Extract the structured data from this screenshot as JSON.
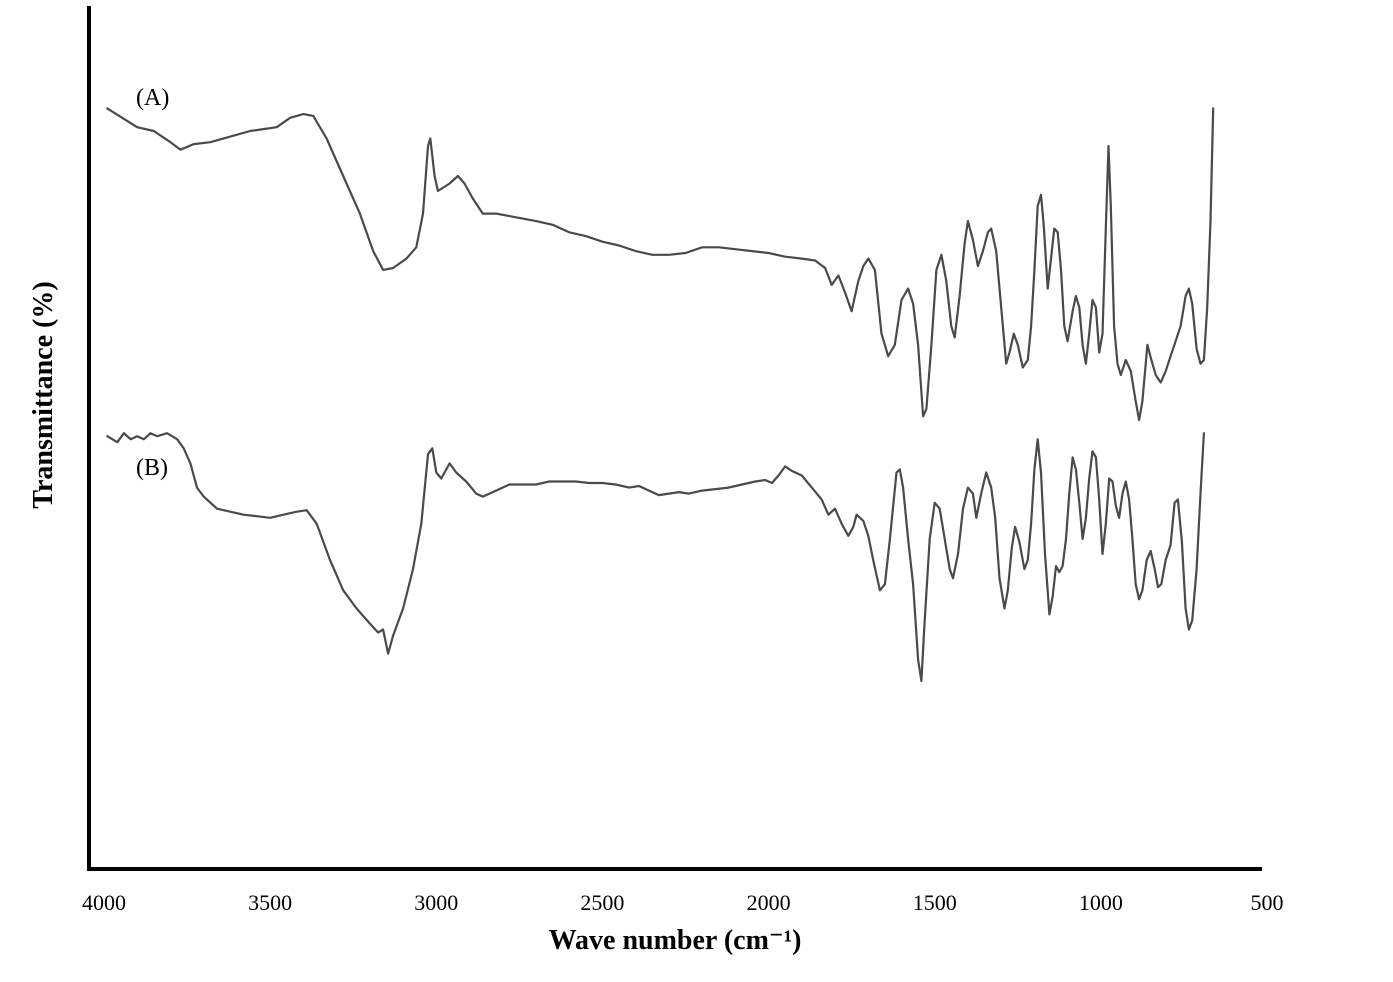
{
  "chart_data": {
    "type": "line",
    "xlabel": "Wave number (cm⁻¹)",
    "ylabel": "Transmittance (%)",
    "xlim": [
      4000,
      500
    ],
    "x_reversed": true,
    "x_ticks": [
      "4000",
      "3500",
      "3000",
      "2500",
      "2000",
      "1500",
      "1000",
      "500"
    ],
    "x_tick_values": [
      4000,
      3500,
      3000,
      2500,
      2000,
      1500,
      1000,
      500
    ],
    "y_tick_labels_shown": false,
    "grid": false,
    "legend": "none",
    "series": [
      {
        "name": "(A)",
        "points": [
          [
            3990,
            0.98
          ],
          [
            3900,
            0.93
          ],
          [
            3850,
            0.92
          ],
          [
            3800,
            0.89
          ],
          [
            3770,
            0.87
          ],
          [
            3730,
            0.885
          ],
          [
            3680,
            0.89
          ],
          [
            3620,
            0.905
          ],
          [
            3560,
            0.92
          ],
          [
            3520,
            0.925
          ],
          [
            3480,
            0.93
          ],
          [
            3440,
            0.955
          ],
          [
            3400,
            0.965
          ],
          [
            3370,
            0.96
          ],
          [
            3330,
            0.9
          ],
          [
            3280,
            0.8
          ],
          [
            3230,
            0.7
          ],
          [
            3190,
            0.6
          ],
          [
            3160,
            0.55
          ],
          [
            3130,
            0.555
          ],
          [
            3090,
            0.58
          ],
          [
            3060,
            0.61
          ],
          [
            3040,
            0.7
          ],
          [
            3025,
            0.88
          ],
          [
            3018,
            0.9
          ],
          [
            3005,
            0.8
          ],
          [
            2995,
            0.76
          ],
          [
            2960,
            0.78
          ],
          [
            2935,
            0.8
          ],
          [
            2915,
            0.78
          ],
          [
            2890,
            0.74
          ],
          [
            2860,
            0.7
          ],
          [
            2820,
            0.7
          ],
          [
            2760,
            0.69
          ],
          [
            2700,
            0.68
          ],
          [
            2650,
            0.67
          ],
          [
            2600,
            0.65
          ],
          [
            2550,
            0.64
          ],
          [
            2500,
            0.625
          ],
          [
            2450,
            0.615
          ],
          [
            2400,
            0.6
          ],
          [
            2350,
            0.59
          ],
          [
            2300,
            0.59
          ],
          [
            2250,
            0.595
          ],
          [
            2200,
            0.61
          ],
          [
            2150,
            0.61
          ],
          [
            2100,
            0.605
          ],
          [
            2050,
            0.6
          ],
          [
            2000,
            0.595
          ],
          [
            1950,
            0.585
          ],
          [
            1900,
            0.58
          ],
          [
            1860,
            0.575
          ],
          [
            1830,
            0.555
          ],
          [
            1810,
            0.51
          ],
          [
            1790,
            0.535
          ],
          [
            1770,
            0.49
          ],
          [
            1750,
            0.44
          ],
          [
            1730,
            0.52
          ],
          [
            1715,
            0.56
          ],
          [
            1700,
            0.58
          ],
          [
            1680,
            0.55
          ],
          [
            1660,
            0.38
          ],
          [
            1640,
            0.32
          ],
          [
            1620,
            0.35
          ],
          [
            1600,
            0.47
          ],
          [
            1580,
            0.5
          ],
          [
            1565,
            0.46
          ],
          [
            1550,
            0.35
          ],
          [
            1535,
            0.16
          ],
          [
            1525,
            0.18
          ],
          [
            1510,
            0.35
          ],
          [
            1495,
            0.55
          ],
          [
            1480,
            0.59
          ],
          [
            1465,
            0.52
          ],
          [
            1450,
            0.4
          ],
          [
            1440,
            0.37
          ],
          [
            1425,
            0.48
          ],
          [
            1410,
            0.62
          ],
          [
            1400,
            0.68
          ],
          [
            1385,
            0.63
          ],
          [
            1370,
            0.56
          ],
          [
            1355,
            0.6
          ],
          [
            1340,
            0.65
          ],
          [
            1330,
            0.66
          ],
          [
            1315,
            0.6
          ],
          [
            1300,
            0.45
          ],
          [
            1285,
            0.3
          ],
          [
            1275,
            0.33
          ],
          [
            1262,
            0.38
          ],
          [
            1250,
            0.35
          ],
          [
            1235,
            0.29
          ],
          [
            1220,
            0.31
          ],
          [
            1210,
            0.4
          ],
          [
            1200,
            0.55
          ],
          [
            1190,
            0.72
          ],
          [
            1180,
            0.75
          ],
          [
            1172,
            0.67
          ],
          [
            1160,
            0.5
          ],
          [
            1150,
            0.58
          ],
          [
            1140,
            0.66
          ],
          [
            1130,
            0.65
          ],
          [
            1120,
            0.55
          ],
          [
            1110,
            0.4
          ],
          [
            1100,
            0.36
          ],
          [
            1085,
            0.44
          ],
          [
            1075,
            0.48
          ],
          [
            1065,
            0.45
          ],
          [
            1055,
            0.35
          ],
          [
            1045,
            0.3
          ],
          [
            1035,
            0.38
          ],
          [
            1025,
            0.47
          ],
          [
            1015,
            0.45
          ],
          [
            1005,
            0.33
          ],
          [
            995,
            0.38
          ],
          [
            985,
            0.66
          ],
          [
            977,
            0.88
          ],
          [
            970,
            0.72
          ],
          [
            960,
            0.4
          ],
          [
            950,
            0.3
          ],
          [
            940,
            0.27
          ],
          [
            925,
            0.31
          ],
          [
            910,
            0.28
          ],
          [
            895,
            0.2
          ],
          [
            885,
            0.15
          ],
          [
            875,
            0.2
          ],
          [
            860,
            0.35
          ],
          [
            848,
            0.31
          ],
          [
            835,
            0.27
          ],
          [
            820,
            0.25
          ],
          [
            805,
            0.28
          ],
          [
            790,
            0.32
          ],
          [
            775,
            0.36
          ],
          [
            760,
            0.4
          ],
          [
            745,
            0.48
          ],
          [
            735,
            0.5
          ],
          [
            725,
            0.46
          ],
          [
            712,
            0.34
          ],
          [
            700,
            0.3
          ],
          [
            690,
            0.31
          ],
          [
            680,
            0.45
          ],
          [
            670,
            0.68
          ],
          [
            662,
            0.98
          ]
        ]
      },
      {
        "name": "(B)",
        "points": [
          [
            3990,
            0.99
          ],
          [
            3960,
            0.97
          ],
          [
            3940,
            1.0
          ],
          [
            3920,
            0.98
          ],
          [
            3900,
            0.99
          ],
          [
            3880,
            0.98
          ],
          [
            3860,
            1.0
          ],
          [
            3840,
            0.99
          ],
          [
            3810,
            1.0
          ],
          [
            3780,
            0.98
          ],
          [
            3760,
            0.95
          ],
          [
            3740,
            0.9
          ],
          [
            3720,
            0.82
          ],
          [
            3700,
            0.79
          ],
          [
            3660,
            0.75
          ],
          [
            3620,
            0.74
          ],
          [
            3580,
            0.73
          ],
          [
            3540,
            0.725
          ],
          [
            3500,
            0.72
          ],
          [
            3460,
            0.73
          ],
          [
            3420,
            0.74
          ],
          [
            3390,
            0.745
          ],
          [
            3360,
            0.7
          ],
          [
            3320,
            0.58
          ],
          [
            3280,
            0.48
          ],
          [
            3240,
            0.42
          ],
          [
            3200,
            0.37
          ],
          [
            3175,
            0.34
          ],
          [
            3160,
            0.35
          ],
          [
            3145,
            0.27
          ],
          [
            3130,
            0.33
          ],
          [
            3100,
            0.42
          ],
          [
            3070,
            0.55
          ],
          [
            3045,
            0.7
          ],
          [
            3025,
            0.93
          ],
          [
            3012,
            0.95
          ],
          [
            3000,
            0.87
          ],
          [
            2985,
            0.85
          ],
          [
            2960,
            0.9
          ],
          [
            2940,
            0.87
          ],
          [
            2910,
            0.84
          ],
          [
            2880,
            0.8
          ],
          [
            2860,
            0.79
          ],
          [
            2820,
            0.81
          ],
          [
            2780,
            0.83
          ],
          [
            2740,
            0.83
          ],
          [
            2700,
            0.83
          ],
          [
            2660,
            0.84
          ],
          [
            2620,
            0.84
          ],
          [
            2580,
            0.84
          ],
          [
            2540,
            0.835
          ],
          [
            2500,
            0.835
          ],
          [
            2460,
            0.83
          ],
          [
            2420,
            0.82
          ],
          [
            2390,
            0.825
          ],
          [
            2360,
            0.81
          ],
          [
            2330,
            0.795
          ],
          [
            2300,
            0.8
          ],
          [
            2270,
            0.805
          ],
          [
            2240,
            0.8
          ],
          [
            2200,
            0.81
          ],
          [
            2160,
            0.815
          ],
          [
            2120,
            0.82
          ],
          [
            2080,
            0.83
          ],
          [
            2040,
            0.84
          ],
          [
            2010,
            0.845
          ],
          [
            1990,
            0.835
          ],
          [
            1970,
            0.86
          ],
          [
            1950,
            0.89
          ],
          [
            1930,
            0.875
          ],
          [
            1900,
            0.86
          ],
          [
            1870,
            0.82
          ],
          [
            1840,
            0.78
          ],
          [
            1820,
            0.73
          ],
          [
            1800,
            0.75
          ],
          [
            1780,
            0.7
          ],
          [
            1760,
            0.66
          ],
          [
            1745,
            0.69
          ],
          [
            1735,
            0.73
          ],
          [
            1715,
            0.71
          ],
          [
            1700,
            0.66
          ],
          [
            1685,
            0.58
          ],
          [
            1665,
            0.48
          ],
          [
            1650,
            0.5
          ],
          [
            1635,
            0.65
          ],
          [
            1615,
            0.87
          ],
          [
            1605,
            0.88
          ],
          [
            1595,
            0.82
          ],
          [
            1580,
            0.65
          ],
          [
            1565,
            0.5
          ],
          [
            1550,
            0.25
          ],
          [
            1540,
            0.18
          ],
          [
            1530,
            0.38
          ],
          [
            1515,
            0.65
          ],
          [
            1500,
            0.77
          ],
          [
            1485,
            0.75
          ],
          [
            1470,
            0.65
          ],
          [
            1455,
            0.55
          ],
          [
            1445,
            0.52
          ],
          [
            1430,
            0.6
          ],
          [
            1415,
            0.75
          ],
          [
            1400,
            0.82
          ],
          [
            1385,
            0.8
          ],
          [
            1375,
            0.72
          ],
          [
            1360,
            0.8
          ],
          [
            1345,
            0.87
          ],
          [
            1330,
            0.82
          ],
          [
            1318,
            0.72
          ],
          [
            1305,
            0.52
          ],
          [
            1290,
            0.42
          ],
          [
            1280,
            0.48
          ],
          [
            1268,
            0.62
          ],
          [
            1258,
            0.69
          ],
          [
            1245,
            0.64
          ],
          [
            1230,
            0.55
          ],
          [
            1220,
            0.58
          ],
          [
            1210,
            0.7
          ],
          [
            1200,
            0.88
          ],
          [
            1190,
            0.98
          ],
          [
            1180,
            0.87
          ],
          [
            1168,
            0.6
          ],
          [
            1155,
            0.4
          ],
          [
            1145,
            0.46
          ],
          [
            1135,
            0.56
          ],
          [
            1125,
            0.54
          ],
          [
            1115,
            0.56
          ],
          [
            1105,
            0.65
          ],
          [
            1095,
            0.8
          ],
          [
            1085,
            0.92
          ],
          [
            1075,
            0.88
          ],
          [
            1065,
            0.77
          ],
          [
            1055,
            0.65
          ],
          [
            1045,
            0.72
          ],
          [
            1035,
            0.85
          ],
          [
            1025,
            0.94
          ],
          [
            1015,
            0.92
          ],
          [
            1005,
            0.78
          ],
          [
            995,
            0.6
          ],
          [
            985,
            0.7
          ],
          [
            975,
            0.85
          ],
          [
            965,
            0.84
          ],
          [
            955,
            0.76
          ],
          [
            945,
            0.72
          ],
          [
            935,
            0.8
          ],
          [
            925,
            0.84
          ],
          [
            915,
            0.78
          ],
          [
            905,
            0.65
          ],
          [
            895,
            0.5
          ],
          [
            885,
            0.45
          ],
          [
            875,
            0.48
          ],
          [
            862,
            0.58
          ],
          [
            850,
            0.61
          ],
          [
            838,
            0.55
          ],
          [
            828,
            0.49
          ],
          [
            818,
            0.5
          ],
          [
            805,
            0.58
          ],
          [
            790,
            0.63
          ],
          [
            778,
            0.77
          ],
          [
            768,
            0.78
          ],
          [
            756,
            0.64
          ],
          [
            745,
            0.42
          ],
          [
            735,
            0.35
          ],
          [
            725,
            0.38
          ],
          [
            712,
            0.55
          ],
          [
            700,
            0.8
          ],
          [
            690,
            1.0
          ]
        ]
      }
    ],
    "series_bands_fraction": [
      [
        0.455,
        0.89
      ],
      [
        0.155,
        0.505
      ]
    ]
  }
}
